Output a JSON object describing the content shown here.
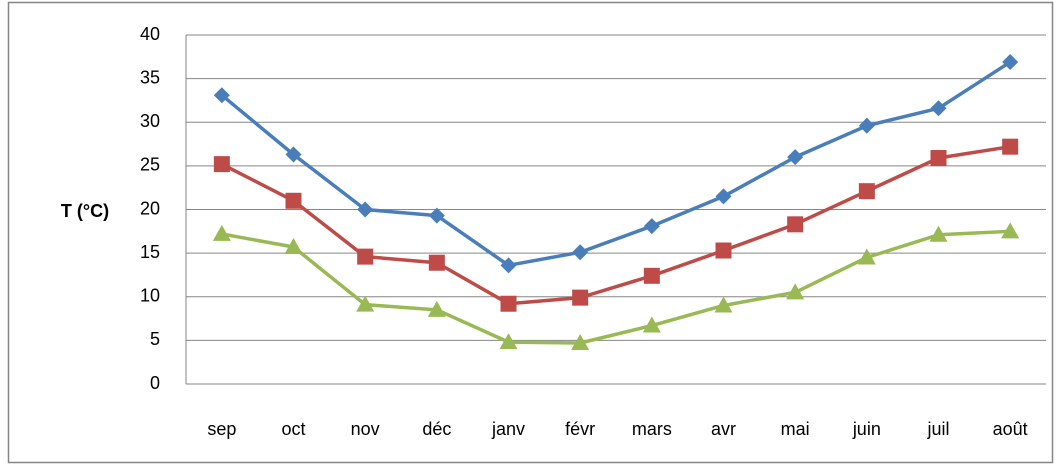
{
  "chart_data": {
    "type": "line",
    "y_label": "T  (°C)",
    "categories": [
      "sep",
      "oct",
      "nov",
      "déc",
      "janv",
      "févr",
      "mars",
      "avr",
      "mai",
      "juin",
      "juil",
      "août"
    ],
    "series": [
      {
        "color": "#4a7ebb",
        "marker": "diamond",
        "values": [
          33.1,
          26.3,
          20.0,
          19.3,
          13.6,
          15.1,
          18.1,
          21.5,
          26.0,
          29.6,
          31.6,
          36.9
        ]
      },
      {
        "color": "#be4b48",
        "marker": "square",
        "values": [
          25.2,
          21.0,
          14.6,
          13.9,
          9.2,
          9.9,
          12.4,
          15.3,
          18.3,
          22.1,
          25.9,
          27.2
        ]
      },
      {
        "color": "#98b954",
        "marker": "triangle",
        "values": [
          17.2,
          15.7,
          9.1,
          8.5,
          4.8,
          4.7,
          6.7,
          9.0,
          10.5,
          14.5,
          17.1,
          17.5
        ]
      }
    ],
    "ylim": [
      0,
      40
    ],
    "yticks": [
      0,
      5,
      10,
      15,
      20,
      25,
      30,
      35,
      40
    ],
    "grid": true
  }
}
